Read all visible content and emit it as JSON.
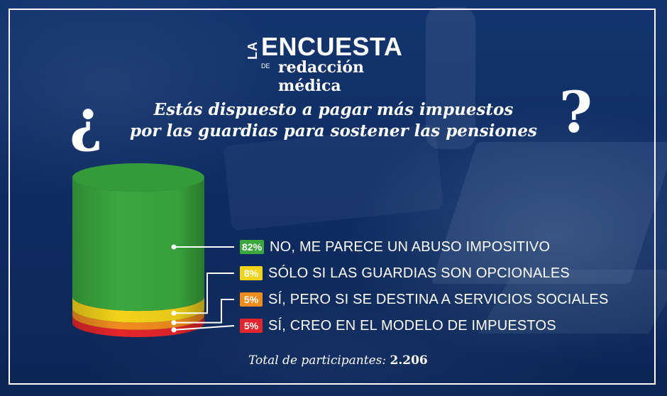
{
  "brand": {
    "la": "LA",
    "main": "ENCUESTA",
    "de": "DE",
    "sub": "redacción médica"
  },
  "question": {
    "open_mark": "¿",
    "line1": "Estás dispuesto a pagar más impuestos",
    "line2": "por las guardias para sostener las pensiones",
    "close_mark": "?"
  },
  "chart_data": {
    "type": "pie",
    "title": "",
    "categories": [
      "NO, ME PARECE UN ABUSO IMPOSITIVO",
      "SÓLO SI LAS GUARDIAS SON OPCIONALES",
      "SÍ, PERO SI SE DESTINA A SERVICIOS SOCIALES",
      "SÍ, CREO EN EL MODELO DE IMPUESTOS"
    ],
    "values": [
      82,
      8,
      5,
      5
    ],
    "labels": [
      "82%",
      "8%",
      "5%",
      "5%"
    ],
    "colors": [
      "#3aa83e",
      "#f2d21a",
      "#ef8c1e",
      "#e3262b"
    ],
    "legend_position": "right"
  },
  "footer": {
    "total_label": "Total de participantes:",
    "total_value": "2.206"
  }
}
